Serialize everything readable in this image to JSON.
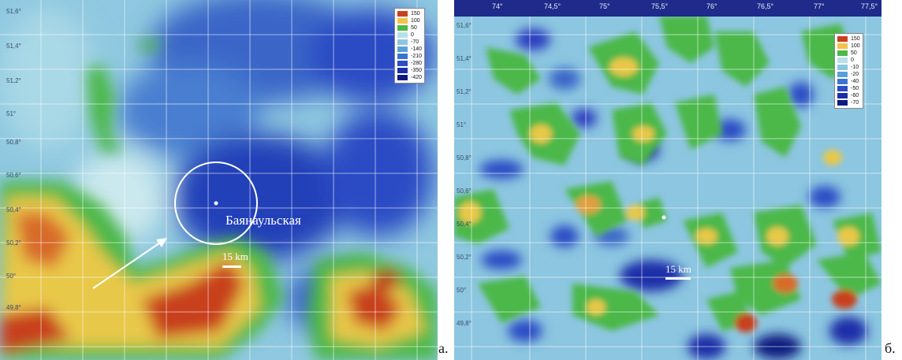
{
  "panel_a": {
    "legend": [
      "150",
      "100",
      "50",
      "0",
      "-70",
      "-140",
      "-210",
      "-280",
      "-350",
      "-420"
    ],
    "latitudes": [
      "51,6°",
      "51,4°",
      "51,2°",
      "51°",
      "50,8°",
      "50,6°",
      "50,4°",
      "50,2°",
      "50°",
      "49,8°"
    ],
    "place_name": "Баянаульская",
    "scale_label": "15 km",
    "panel_letter": "а."
  },
  "panel_b": {
    "legend": [
      "150",
      "100",
      "50",
      "0",
      "-10",
      "-20",
      "-40",
      "-50",
      "-60",
      "-70"
    ],
    "longitudes": [
      "74°",
      "74,5°",
      "75°",
      "75,5°",
      "76°",
      "76,5°",
      "77°",
      "77,5°"
    ],
    "latitudes": [
      "51,6°",
      "51,4°",
      "51,2°",
      "51°",
      "50,8°",
      "50,6°",
      "50,4°",
      "50,2°",
      "50°",
      "49,8°"
    ],
    "scale_label": "15 km",
    "panel_letter": "б."
  },
  "colors": {
    "legend_scale": [
      "#c8401e",
      "#f2c24a",
      "#4cb848",
      "#b8e0e8",
      "#8cc6e0",
      "#5aa0d8",
      "#3a74d0",
      "#2a4cc4",
      "#1a2ea8",
      "#0c1a80"
    ],
    "dark_blue": "#1a2ea8",
    "water_light": "#a9d8e6",
    "anomaly_high": "#c8401e",
    "ring": "#ffffff"
  }
}
